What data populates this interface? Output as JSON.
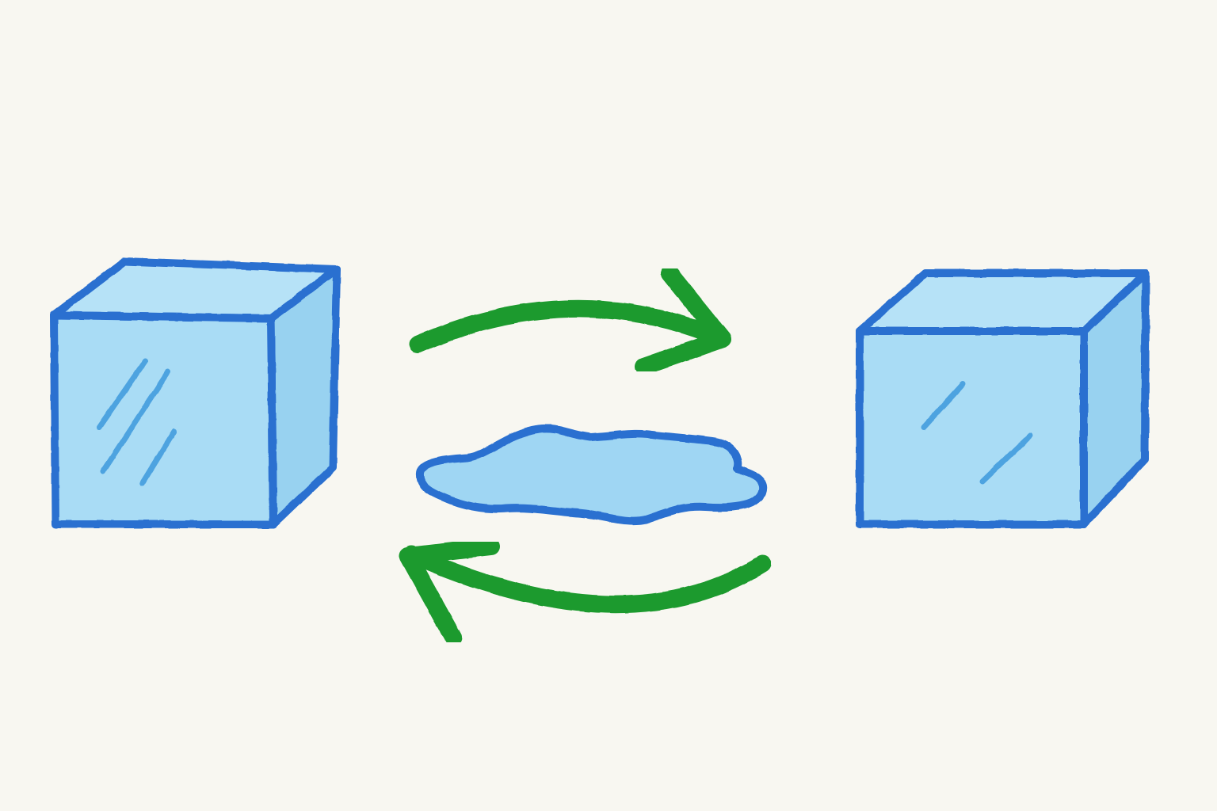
{
  "colors": {
    "paper": "#f8f7f1",
    "outline_blue": "#2a6fd0",
    "ice_fill": "#a9dcf5",
    "ice_side": "#98d2f0",
    "ice_top": "#b6e2f7",
    "shine": "#4ea3e0",
    "arrow_green": "#1f9a2e",
    "water_fill": "#9fd6f3"
  },
  "icons": {
    "left_block": "ice-cube-icon",
    "right_block": "ice-cube-icon",
    "center": "water-puddle-icon",
    "top_arrow": "curved-arrow-right-icon",
    "bottom_arrow": "curved-arrow-left-icon"
  }
}
